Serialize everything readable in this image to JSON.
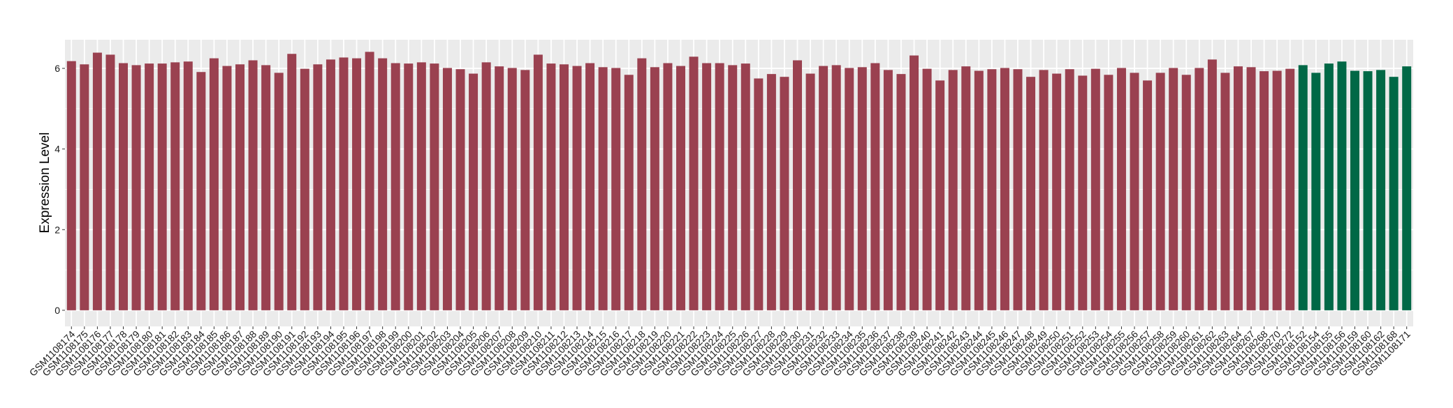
{
  "chart_data": {
    "type": "bar",
    "title": "",
    "xlabel": "",
    "ylabel": "Expression Level",
    "ylim": [
      -0.4,
      6.71
    ],
    "yticks": [
      0,
      2,
      4,
      6
    ],
    "grid": true,
    "legend": "none",
    "colors": {
      "group1": "#9A4150",
      "group2": "#006846",
      "panel": "#EBEBEB",
      "grid": "#FFFFFF"
    },
    "categories": [
      "GSM1108174",
      "GSM1108175",
      "GSM1108176",
      "GSM1108177",
      "GSM1108178",
      "GSM1108179",
      "GSM1108180",
      "GSM1108181",
      "GSM1108182",
      "GSM1108183",
      "GSM1108184",
      "GSM1108185",
      "GSM1108186",
      "GSM1108187",
      "GSM1108188",
      "GSM1108189",
      "GSM1108190",
      "GSM1108191",
      "GSM1108192",
      "GSM1108193",
      "GSM1108194",
      "GSM1108195",
      "GSM1108196",
      "GSM1108197",
      "GSM1108198",
      "GSM1108199",
      "GSM1108200",
      "GSM1108201",
      "GSM1108202",
      "GSM1108203",
      "GSM1108204",
      "GSM1108205",
      "GSM1108206",
      "GSM1108207",
      "GSM1108208",
      "GSM1108209",
      "GSM1108210",
      "GSM1108211",
      "GSM1108212",
      "GSM1108213",
      "GSM1108214",
      "GSM1108215",
      "GSM1108216",
      "GSM1108217",
      "GSM1108218",
      "GSM1108219",
      "GSM1108220",
      "GSM1108221",
      "GSM1108222",
      "GSM1108223",
      "GSM1108224",
      "GSM1108225",
      "GSM1108226",
      "GSM1108227",
      "GSM1108228",
      "GSM1108229",
      "GSM1108230",
      "GSM1108231",
      "GSM1108232",
      "GSM1108233",
      "GSM1108234",
      "GSM1108235",
      "GSM1108236",
      "GSM1108237",
      "GSM1108238",
      "GSM1108239",
      "GSM1108240",
      "GSM1108241",
      "GSM1108242",
      "GSM1108243",
      "GSM1108244",
      "GSM1108245",
      "GSM1108246",
      "GSM1108247",
      "GSM1108248",
      "GSM1108249",
      "GSM1108250",
      "GSM1108251",
      "GSM1108252",
      "GSM1108253",
      "GSM1108254",
      "GSM1108255",
      "GSM1108256",
      "GSM1108257",
      "GSM1108258",
      "GSM1108259",
      "GSM1108260",
      "GSM1108261",
      "GSM1108262",
      "GSM1108263",
      "GSM1108264",
      "GSM1108267",
      "GSM1108268",
      "GSM1108270",
      "GSM1108272",
      "GSM1108152",
      "GSM1108154",
      "GSM1108155",
      "GSM1108156",
      "GSM1108159",
      "GSM1108160",
      "GSM1108162",
      "GSM1108168",
      "GSM1108171"
    ],
    "values": [
      6.18,
      6.1,
      6.39,
      6.34,
      6.13,
      6.08,
      6.12,
      6.12,
      6.15,
      6.17,
      5.91,
      6.25,
      6.06,
      6.1,
      6.2,
      6.08,
      5.89,
      6.36,
      5.99,
      6.1,
      6.22,
      6.27,
      6.25,
      6.41,
      6.25,
      6.13,
      6.12,
      6.15,
      6.12,
      6.01,
      5.98,
      5.87,
      6.15,
      6.05,
      6.01,
      5.96,
      6.34,
      6.12,
      6.1,
      6.06,
      6.13,
      6.03,
      6.01,
      5.84,
      6.25,
      6.03,
      6.13,
      6.06,
      6.29,
      6.13,
      6.13,
      6.08,
      6.12,
      5.75,
      5.86,
      5.79,
      6.2,
      5.87,
      6.06,
      6.08,
      6.01,
      6.03,
      6.13,
      5.96,
      5.86,
      6.32,
      5.99,
      5.7,
      5.96,
      6.05,
      5.94,
      5.98,
      6.01,
      5.98,
      5.79,
      5.96,
      5.87,
      5.98,
      5.82,
      5.99,
      5.84,
      6.01,
      5.89,
      5.7,
      5.89,
      6.01,
      5.84,
      6.01,
      6.22,
      5.89,
      6.05,
      6.03,
      5.93,
      5.94,
      5.99,
      6.08,
      5.89,
      6.12,
      6.17,
      5.94,
      5.93,
      5.96,
      5.79,
      6.05
    ],
    "groups": [
      "group1",
      "group1",
      "group1",
      "group1",
      "group1",
      "group1",
      "group1",
      "group1",
      "group1",
      "group1",
      "group1",
      "group1",
      "group1",
      "group1",
      "group1",
      "group1",
      "group1",
      "group1",
      "group1",
      "group1",
      "group1",
      "group1",
      "group1",
      "group1",
      "group1",
      "group1",
      "group1",
      "group1",
      "group1",
      "group1",
      "group1",
      "group1",
      "group1",
      "group1",
      "group1",
      "group1",
      "group1",
      "group1",
      "group1",
      "group1",
      "group1",
      "group1",
      "group1",
      "group1",
      "group1",
      "group1",
      "group1",
      "group1",
      "group1",
      "group1",
      "group1",
      "group1",
      "group1",
      "group1",
      "group1",
      "group1",
      "group1",
      "group1",
      "group1",
      "group1",
      "group1",
      "group1",
      "group1",
      "group1",
      "group1",
      "group1",
      "group1",
      "group1",
      "group1",
      "group1",
      "group1",
      "group1",
      "group1",
      "group1",
      "group1",
      "group1",
      "group1",
      "group1",
      "group1",
      "group1",
      "group1",
      "group1",
      "group1",
      "group1",
      "group1",
      "group1",
      "group1",
      "group1",
      "group1",
      "group1",
      "group1",
      "group1",
      "group1",
      "group1",
      "group1",
      "group2",
      "group2",
      "group2",
      "group2",
      "group2",
      "group2",
      "group2",
      "group2",
      "group2"
    ]
  }
}
